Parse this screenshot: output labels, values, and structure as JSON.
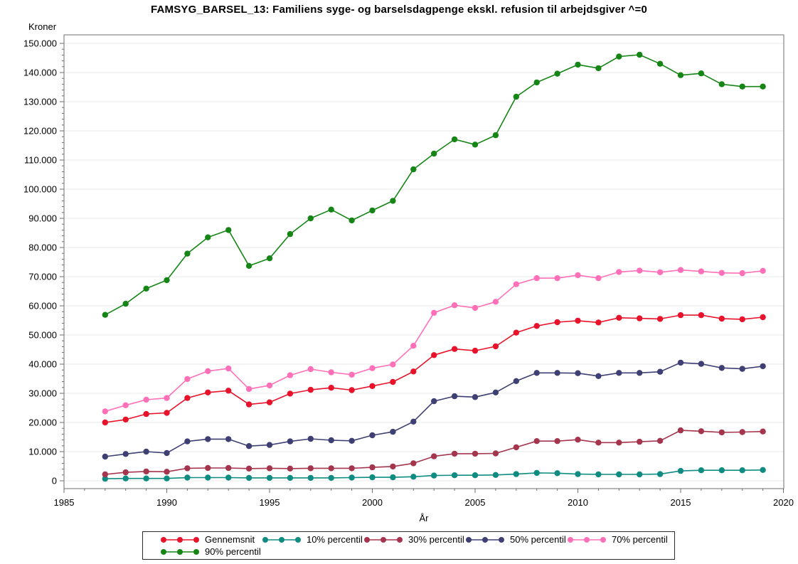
{
  "page": {
    "background": "#ffffff"
  },
  "chart_data": {
    "type": "line",
    "title": "FAMSYG_BARSEL_13: Familiens syge- og barselsdagpenge ekskl. refusion til arbejdsgiver ^=0",
    "xlabel": "År",
    "ylabel": "Kroner",
    "xlim": [
      1985,
      2020
    ],
    "ylim": [
      0,
      150000
    ],
    "x_major_tick_step": 5,
    "x_minor_tick_step": 1,
    "y_major_tick_step": 10000,
    "y_minor_tick_step": 2000,
    "grid": "horizontal-major",
    "legend_position": "bottom",
    "x_tick_labels": [
      "1985",
      "1990",
      "1995",
      "2000",
      "2005",
      "2010",
      "2015",
      "2020"
    ],
    "y_tick_labels": [
      "0",
      "10.000",
      "20.000",
      "30.000",
      "40.000",
      "50.000",
      "60.000",
      "70.000",
      "80.000",
      "90.000",
      "100.000",
      "110.000",
      "120.000",
      "130.000",
      "140.000",
      "150.000"
    ],
    "x": [
      1987,
      1988,
      1989,
      1990,
      1991,
      1992,
      1993,
      1994,
      1995,
      1996,
      1997,
      1998,
      1999,
      2000,
      2001,
      2002,
      2003,
      2004,
      2005,
      2006,
      2007,
      2008,
      2009,
      2010,
      2011,
      2012,
      2013,
      2014,
      2015,
      2016,
      2017,
      2018,
      2019
    ],
    "series": [
      {
        "name": "Gennemsnit",
        "color": "#e8132b",
        "values": [
          20000,
          21000,
          22900,
          23300,
          28400,
          30300,
          30900,
          26200,
          26900,
          29900,
          31200,
          31900,
          31100,
          32500,
          33900,
          37500,
          43100,
          45200,
          44600,
          46100,
          50800,
          53100,
          54400,
          54900,
          54300,
          55900,
          55700,
          55500,
          56800,
          56800,
          55600,
          55400,
          56100
        ]
      },
      {
        "name": "10% percentil",
        "color": "#0e8c82",
        "values": [
          700,
          800,
          800,
          800,
          1100,
          1100,
          1100,
          1000,
          1000,
          1000,
          1000,
          1000,
          1100,
          1200,
          1200,
          1400,
          1800,
          1900,
          1900,
          2000,
          2300,
          2700,
          2600,
          2300,
          2200,
          2200,
          2200,
          2300,
          3400,
          3600,
          3600,
          3600,
          3700
        ]
      },
      {
        "name": "30% percentil",
        "color": "#a5344d",
        "values": [
          2200,
          2900,
          3200,
          3100,
          4300,
          4400,
          4400,
          4200,
          4300,
          4200,
          4300,
          4300,
          4300,
          4600,
          4900,
          6000,
          8400,
          9300,
          9300,
          9400,
          11500,
          13600,
          13600,
          14100,
          13100,
          13100,
          13400,
          13700,
          17300,
          17000,
          16600,
          16700,
          16900
        ]
      },
      {
        "name": "50% percentil",
        "color": "#3e3f73",
        "values": [
          8300,
          9200,
          10000,
          9500,
          13500,
          14300,
          14300,
          11900,
          12300,
          13500,
          14400,
          13900,
          13700,
          15600,
          16800,
          20300,
          27300,
          29000,
          28700,
          30300,
          34200,
          37000,
          37000,
          36900,
          35900,
          37000,
          37000,
          37400,
          40500,
          40100,
          38700,
          38400,
          39300
        ]
      },
      {
        "name": "70% percentil",
        "color": "#ff70b8",
        "values": [
          23800,
          25900,
          27800,
          28400,
          34900,
          37600,
          38500,
          31500,
          32700,
          36200,
          38300,
          37200,
          36400,
          38600,
          39900,
          46300,
          57600,
          60200,
          59300,
          61400,
          67400,
          69500,
          69500,
          70500,
          69500,
          71600,
          72100,
          71500,
          72300,
          71800,
          71300,
          71200,
          72000
        ]
      },
      {
        "name": "90% percentil",
        "color": "#158515",
        "values": [
          56900,
          60700,
          65900,
          68800,
          77900,
          83500,
          86000,
          73700,
          76300,
          84600,
          90000,
          93000,
          89300,
          92700,
          96000,
          106800,
          112200,
          117100,
          115300,
          118500,
          131700,
          136600,
          139600,
          142700,
          141500,
          145500,
          146100,
          143000,
          139100,
          139700,
          136000,
          135200,
          135200
        ]
      }
    ],
    "legend_rows": [
      5,
      1
    ]
  }
}
